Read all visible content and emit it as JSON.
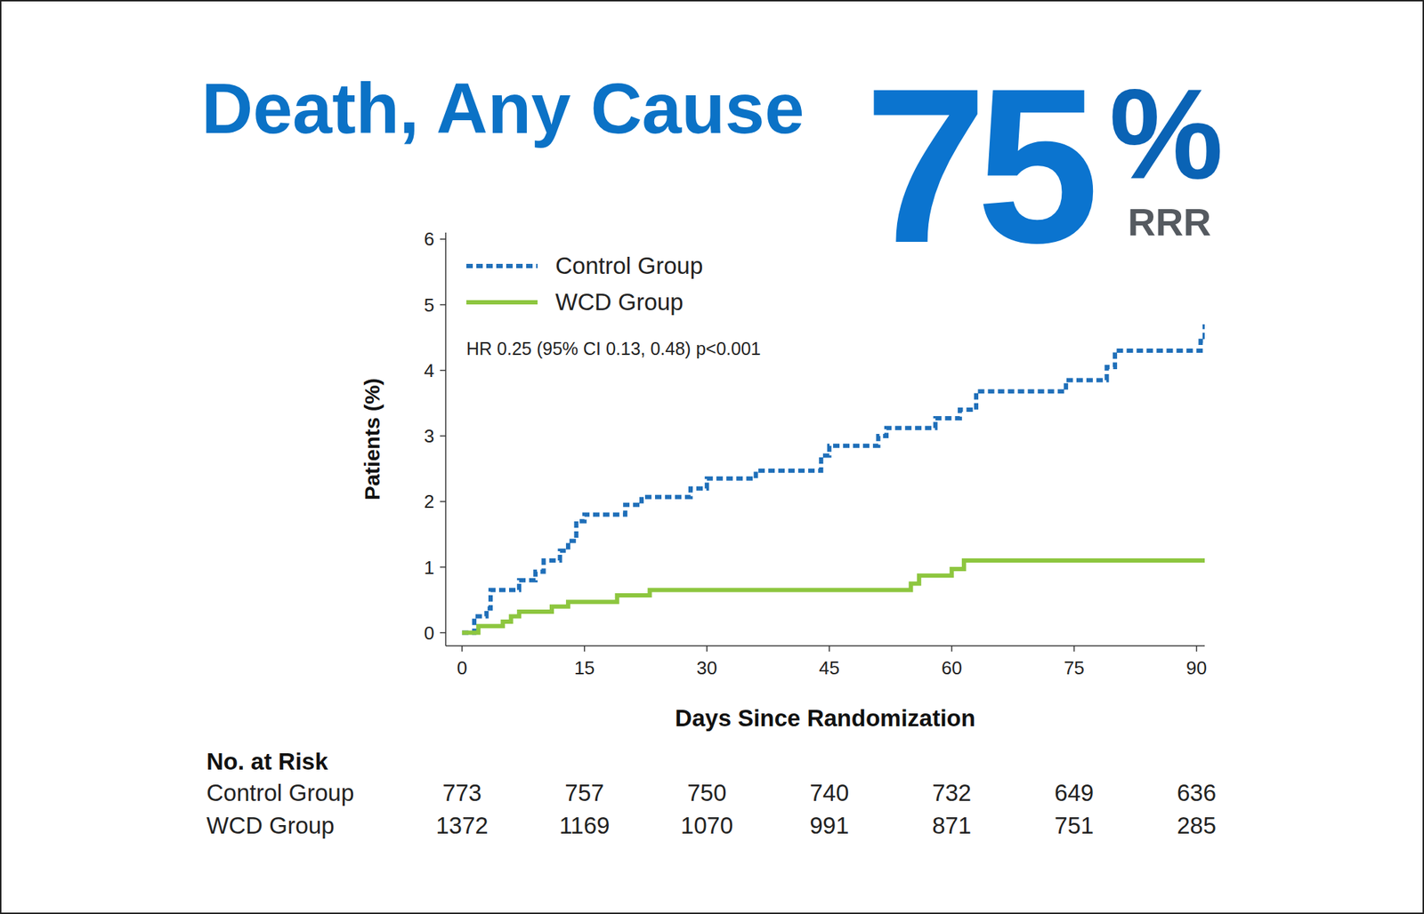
{
  "chart_data": {
    "type": "step",
    "title": "Death, Any Cause",
    "headline": {
      "value": "75",
      "unit": "%",
      "label": "RRR"
    },
    "annotation": "HR 0.25 (95% CI 0.13, 0.48) p<0.001",
    "x_label": "Days Since Randomization",
    "y_label": "Patients (%)",
    "xlim": [
      -2,
      91
    ],
    "xticks": [
      0,
      15,
      30,
      45,
      60,
      75,
      90
    ],
    "ylim": [
      -0.2,
      6.1
    ],
    "yticks": [
      0,
      1,
      2,
      3,
      4,
      5,
      6
    ],
    "legend": "upper left",
    "grid": false,
    "series": [
      {
        "name": "Control Group",
        "color": "#1f6fb9",
        "line_style": "dotted",
        "x": [
          0,
          1.5,
          3,
          3.5,
          7,
          9,
          10,
          12,
          13,
          14,
          15,
          20,
          22,
          28,
          30,
          36,
          44,
          45,
          51,
          52,
          58,
          61,
          63,
          74,
          79,
          80,
          90.5,
          91
        ],
        "values": [
          0,
          0.25,
          0.37,
          0.65,
          0.8,
          0.93,
          1.1,
          1.25,
          1.4,
          1.7,
          1.8,
          1.95,
          2.07,
          2.2,
          2.35,
          2.47,
          2.7,
          2.85,
          3.0,
          3.12,
          3.27,
          3.4,
          3.68,
          3.85,
          4.05,
          4.3,
          4.45,
          4.7
        ]
      },
      {
        "name": "WCD Group",
        "color": "#8dc63f",
        "line_style": "solid",
        "x": [
          0,
          2,
          5,
          6,
          7,
          11,
          13,
          19,
          23,
          55,
          56,
          60,
          61.5,
          91
        ],
        "values": [
          0,
          0.1,
          0.17,
          0.25,
          0.32,
          0.4,
          0.47,
          0.57,
          0.65,
          0.75,
          0.87,
          0.97,
          1.1,
          1.12
        ]
      }
    ],
    "risk_table": {
      "title": "No. at Risk",
      "x": [
        0,
        15,
        30,
        45,
        60,
        75,
        90
      ],
      "rows": [
        {
          "name": "Control Group",
          "values": [
            773,
            757,
            750,
            740,
            732,
            649,
            636
          ]
        },
        {
          "name": "WCD Group",
          "values": [
            1372,
            1169,
            1070,
            991,
            871,
            751,
            285
          ]
        }
      ]
    }
  }
}
